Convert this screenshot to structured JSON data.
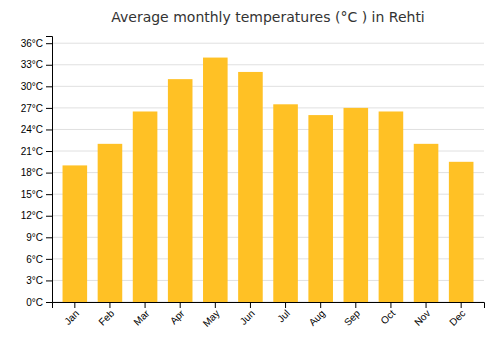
{
  "chart_data": {
    "type": "bar",
    "title": "Average monthly temperatures (°C ) in Rehti",
    "categories": [
      "Jan",
      "Feb",
      "Mar",
      "Apr",
      "May",
      "Jun",
      "Jul",
      "Aug",
      "Sep",
      "Oct",
      "Nov",
      "Dec"
    ],
    "values": [
      19.0,
      22.0,
      26.5,
      31.0,
      34.0,
      32.0,
      27.5,
      26.0,
      27.0,
      26.5,
      22.0,
      19.5
    ],
    "color": "#FFC125",
    "ylim": [
      0,
      37
    ],
    "yticks": [
      {
        "value": 0,
        "label": "0°C"
      },
      {
        "value": 3,
        "label": "3°C"
      },
      {
        "value": 6,
        "label": "6°C"
      },
      {
        "value": 9,
        "label": "9°C"
      },
      {
        "value": 12,
        "label": "12°C"
      },
      {
        "value": 15,
        "label": "15°C"
      },
      {
        "value": 18,
        "label": "18°C"
      },
      {
        "value": 21,
        "label": "21°C"
      },
      {
        "value": 24,
        "label": "24°C"
      },
      {
        "value": 27,
        "label": "27°C"
      },
      {
        "value": 30,
        "label": "30°C"
      },
      {
        "value": 33,
        "label": "33°C"
      },
      {
        "value": 36,
        "label": "36°C"
      }
    ],
    "grid": true
  }
}
